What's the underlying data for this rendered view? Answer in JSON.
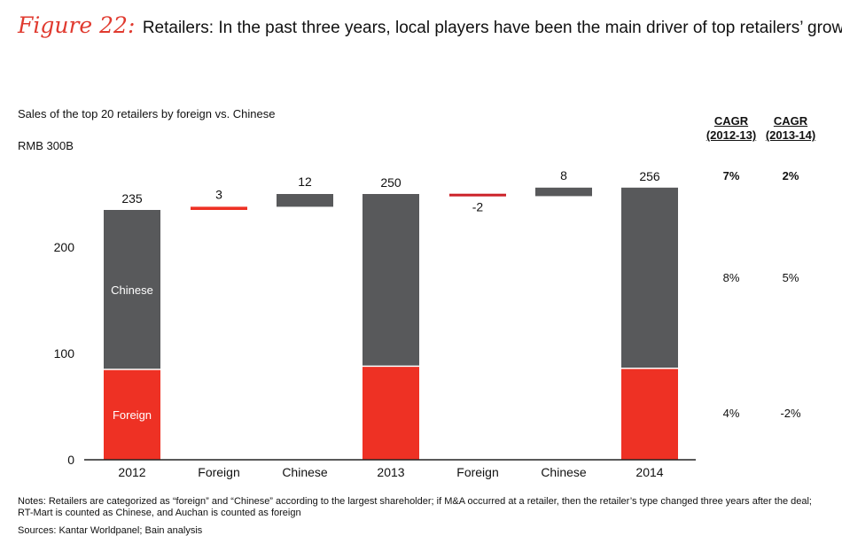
{
  "figure": {
    "label": "Figure 22:",
    "title": "Retailers: In the past three years, local players have been the main driver of top retailers’ growth"
  },
  "subtitle": "Sales of the top 20 retailers by foreign vs. Chinese",
  "unit_label": "RMB 300B",
  "cagr": {
    "headers": [
      {
        "title": "CAGR",
        "period": "(2012-13)"
      },
      {
        "title": "CAGR",
        "period": "(2013-14)"
      }
    ],
    "total": [
      "7%",
      "2%"
    ],
    "chinese": [
      "8%",
      "5%"
    ],
    "foreign": [
      "4%",
      "-2%"
    ]
  },
  "notes": "Notes: Retailers are categorized as “foreign” and “Chinese” according to the largest shareholder; if M&A occurred at a retailer, then the retailer’s type changed three years after the deal; RT-Mart is counted as Chinese, and Auchan is counted as foreign",
  "sources": "Sources: Kantar Worldpanel; Bain analysis",
  "colors": {
    "chinese": "#58595b",
    "foreign": "#ee3124",
    "negative": "#cc2229",
    "accent": "#e03a2f"
  },
  "chart_data": {
    "type": "bar",
    "subtype": "waterfall",
    "categories": [
      "2012",
      "Foreign",
      "Chinese",
      "2013",
      "Foreign",
      "Chinese",
      "2014"
    ],
    "yticks": [
      0,
      100,
      200
    ],
    "ylim": [
      0,
      300
    ],
    "segment_labels": {
      "chinese": "Chinese",
      "foreign": "Foreign"
    },
    "bars": [
      {
        "kind": "total",
        "foreign": 85,
        "chinese": 150,
        "label": "235"
      },
      {
        "kind": "delta",
        "series": "foreign",
        "start": 235,
        "value": 3,
        "label": "3"
      },
      {
        "kind": "delta",
        "series": "chinese",
        "start": 238,
        "value": 12,
        "label": "12"
      },
      {
        "kind": "total",
        "foreign": 88,
        "chinese": 162,
        "label": "250"
      },
      {
        "kind": "delta",
        "series": "foreign",
        "start": 250,
        "value": -2,
        "label": "-2"
      },
      {
        "kind": "delta",
        "series": "chinese",
        "start": 248,
        "value": 8,
        "label": "8"
      },
      {
        "kind": "total",
        "foreign": 86,
        "chinese": 170,
        "label": "256"
      }
    ]
  }
}
